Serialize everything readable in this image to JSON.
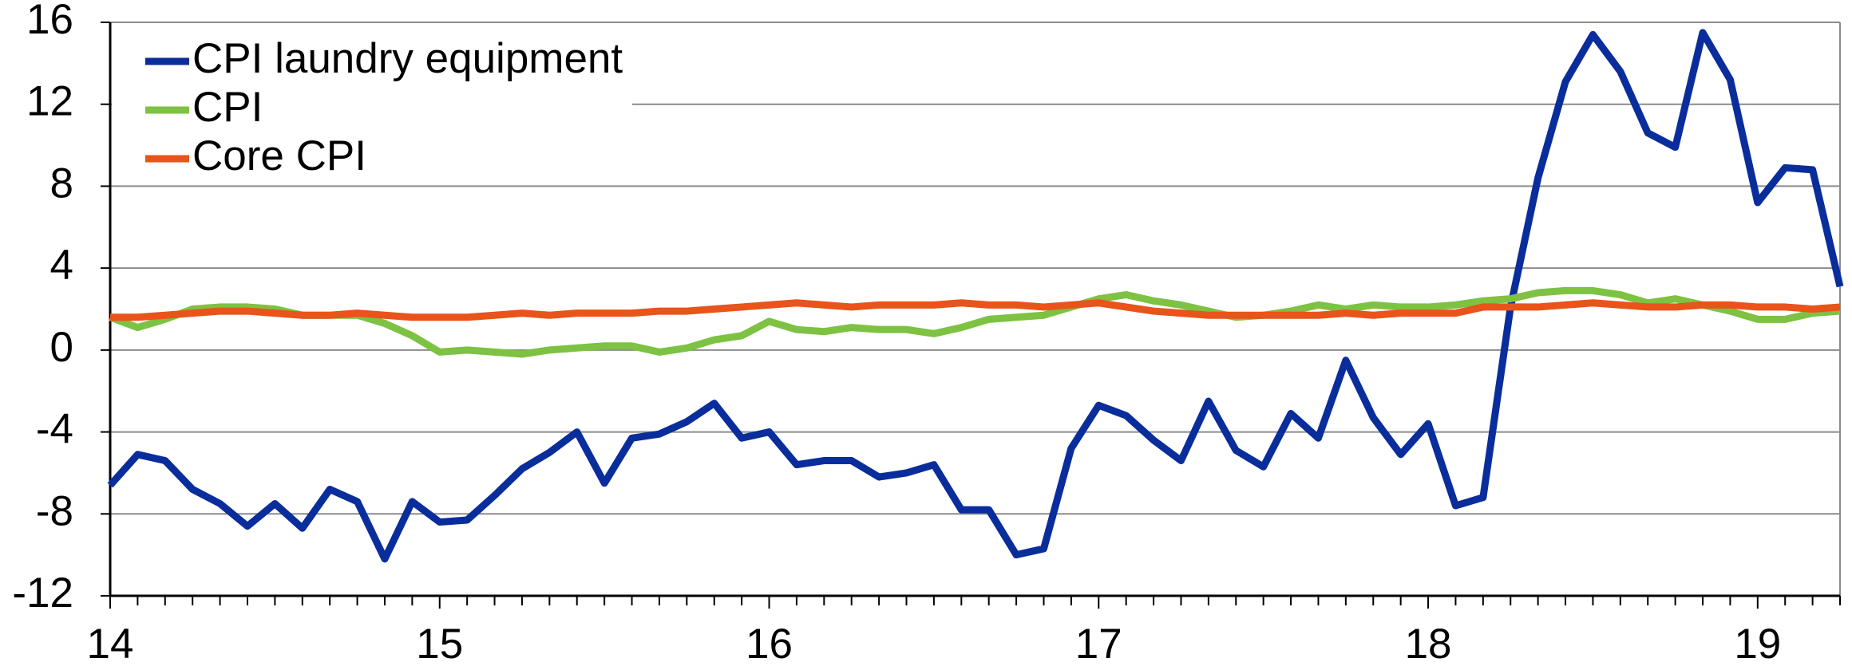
{
  "chart_data": {
    "type": "line",
    "categories": [
      "14",
      null,
      null,
      null,
      null,
      null,
      null,
      null,
      null,
      null,
      null,
      null,
      "15",
      null,
      null,
      null,
      null,
      null,
      null,
      null,
      null,
      null,
      null,
      null,
      "16",
      null,
      null,
      null,
      null,
      null,
      null,
      null,
      null,
      null,
      null,
      null,
      "17",
      null,
      null,
      null,
      null,
      null,
      null,
      null,
      null,
      null,
      null,
      null,
      "18",
      null,
      null,
      null,
      null,
      null,
      null,
      null,
      null,
      null,
      null,
      null,
      "19",
      null,
      null,
      null
    ],
    "series": [
      {
        "name": "CPI laundry equipment",
        "color": "#0a2d9c",
        "values": [
          -6.6,
          -5.1,
          -5.4,
          -6.8,
          -7.5,
          -8.6,
          -7.5,
          -8.7,
          -6.8,
          -7.4,
          -10.2,
          -7.4,
          -8.4,
          -8.3,
          -7.1,
          -5.8,
          -5.0,
          -4.0,
          -6.5,
          -4.3,
          -4.1,
          -3.5,
          -2.6,
          -4.3,
          -4.0,
          -5.6,
          -5.4,
          -5.4,
          -6.2,
          -6.0,
          -5.6,
          -7.8,
          -7.8,
          -10.0,
          -9.7,
          -4.8,
          -2.7,
          -3.2,
          -4.4,
          -5.4,
          -2.5,
          -4.9,
          -5.7,
          -3.1,
          -4.3,
          -0.5,
          -3.3,
          -5.1,
          -3.6,
          -7.6,
          -7.2,
          2.1,
          8.4,
          13.1,
          15.4,
          13.6,
          10.6,
          9.9,
          15.5,
          13.2,
          7.2,
          8.9,
          8.8,
          3.1
        ]
      },
      {
        "name": "CPI",
        "color": "#7dc242",
        "values": [
          1.6,
          1.1,
          1.5,
          2.0,
          2.1,
          2.1,
          2.0,
          1.7,
          1.7,
          1.7,
          1.3,
          0.7,
          -0.1,
          0.0,
          -0.1,
          -0.2,
          0.0,
          0.1,
          0.2,
          0.2,
          -0.1,
          0.1,
          0.5,
          0.7,
          1.4,
          1.0,
          0.9,
          1.1,
          1.0,
          1.0,
          0.8,
          1.1,
          1.5,
          1.6,
          1.7,
          2.1,
          2.5,
          2.7,
          2.4,
          2.2,
          1.9,
          1.6,
          1.7,
          1.9,
          2.2,
          2.0,
          2.2,
          2.1,
          2.1,
          2.2,
          2.4,
          2.5,
          2.8,
          2.9,
          2.9,
          2.7,
          2.3,
          2.5,
          2.2,
          1.9,
          1.5,
          1.5,
          1.8,
          1.9
        ]
      },
      {
        "name": "Core CPI",
        "color": "#e8541a",
        "values": [
          1.6,
          1.6,
          1.7,
          1.8,
          1.9,
          1.9,
          1.8,
          1.7,
          1.7,
          1.8,
          1.7,
          1.6,
          1.6,
          1.6,
          1.7,
          1.8,
          1.7,
          1.8,
          1.8,
          1.8,
          1.9,
          1.9,
          2.0,
          2.1,
          2.2,
          2.3,
          2.2,
          2.1,
          2.2,
          2.2,
          2.2,
          2.3,
          2.2,
          2.2,
          2.1,
          2.2,
          2.3,
          2.1,
          1.9,
          1.8,
          1.7,
          1.7,
          1.7,
          1.7,
          1.7,
          1.8,
          1.7,
          1.8,
          1.8,
          1.8,
          2.1,
          2.1,
          2.1,
          2.2,
          2.3,
          2.2,
          2.1,
          2.1,
          2.2,
          2.2,
          2.1,
          2.1,
          2.0,
          2.1
        ]
      }
    ],
    "ylim": [
      -12,
      16
    ],
    "yticks": [
      -12,
      -8,
      -4,
      0,
      4,
      8,
      12,
      16
    ],
    "grid": true,
    "legend": "upper left"
  }
}
